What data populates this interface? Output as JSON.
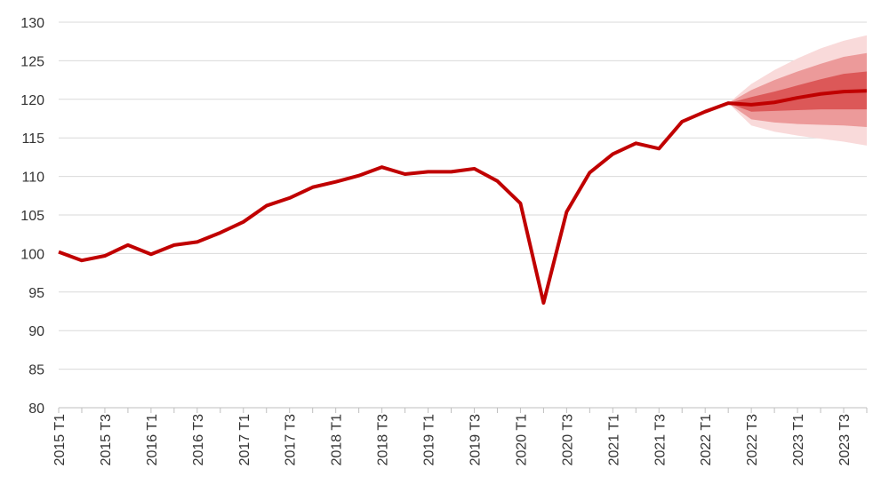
{
  "chart_data": {
    "type": "fan",
    "categories": [
      "2015 T1",
      null,
      "2015 T3",
      null,
      "2016 T1",
      null,
      "2016 T3",
      null,
      "2017 T1",
      null,
      "2017 T3",
      null,
      "2018 T1",
      null,
      "2018 T3",
      null,
      "2019 T1",
      null,
      "2019 T3",
      null,
      "2020 T1",
      null,
      "2020 T3",
      null,
      "2021 T1",
      null,
      "2021 T3",
      null,
      "2022 T1",
      null,
      "2022 T3",
      null,
      "2023 T1",
      null,
      "2023 T3",
      null
    ],
    "series": [
      {
        "color": "#c00000",
        "values": [
          100.2,
          99.1,
          99.7,
          101.1,
          99.9,
          101.1,
          101.5,
          102.7,
          104.1,
          106.2,
          107.2,
          108.6,
          109.3,
          110.1,
          111.2,
          110.3,
          110.6,
          110.6,
          111.0,
          109.4,
          106.5,
          93.6,
          105.4,
          110.5,
          112.9,
          114.3,
          113.6,
          117.1,
          118.4,
          119.5,
          119.3,
          119.6,
          120.2,
          120.7,
          121.0,
          121.1
        ]
      }
    ],
    "bands": [
      {
        "color": "#f9dada",
        "lower": [
          null,
          null,
          null,
          null,
          null,
          null,
          null,
          null,
          null,
          null,
          null,
          null,
          null,
          null,
          null,
          null,
          null,
          null,
          null,
          null,
          null,
          null,
          null,
          null,
          null,
          null,
          null,
          null,
          null,
          119.5,
          116.6,
          115.8,
          115.3,
          114.9,
          114.5,
          114.0
        ],
        "upper": [
          null,
          null,
          null,
          null,
          null,
          null,
          null,
          null,
          null,
          null,
          null,
          null,
          null,
          null,
          null,
          null,
          null,
          null,
          null,
          null,
          null,
          null,
          null,
          null,
          null,
          null,
          null,
          null,
          null,
          119.5,
          122.0,
          123.8,
          125.3,
          126.6,
          127.6,
          128.3
        ]
      },
      {
        "color": "#ec9a9a",
        "lower": [
          null,
          null,
          null,
          null,
          null,
          null,
          null,
          null,
          null,
          null,
          null,
          null,
          null,
          null,
          null,
          null,
          null,
          null,
          null,
          null,
          null,
          null,
          null,
          null,
          null,
          null,
          null,
          null,
          null,
          119.5,
          117.4,
          117.0,
          116.8,
          116.7,
          116.6,
          116.4
        ],
        "upper": [
          null,
          null,
          null,
          null,
          null,
          null,
          null,
          null,
          null,
          null,
          null,
          null,
          null,
          null,
          null,
          null,
          null,
          null,
          null,
          null,
          null,
          null,
          null,
          null,
          null,
          null,
          null,
          null,
          null,
          119.5,
          121.2,
          122.5,
          123.6,
          124.6,
          125.5,
          126.0
        ]
      },
      {
        "color": "#dc5858",
        "lower": [
          null,
          null,
          null,
          null,
          null,
          null,
          null,
          null,
          null,
          null,
          null,
          null,
          null,
          null,
          null,
          null,
          null,
          null,
          null,
          null,
          null,
          null,
          null,
          null,
          null,
          null,
          null,
          null,
          null,
          119.5,
          118.4,
          118.5,
          118.6,
          118.7,
          118.7,
          118.7
        ],
        "upper": [
          null,
          null,
          null,
          null,
          null,
          null,
          null,
          null,
          null,
          null,
          null,
          null,
          null,
          null,
          null,
          null,
          null,
          null,
          null,
          null,
          null,
          null,
          null,
          null,
          null,
          null,
          null,
          null,
          null,
          119.5,
          120.3,
          121.0,
          121.8,
          122.6,
          123.3,
          123.6
        ]
      }
    ],
    "ylim": [
      80,
      130
    ],
    "yticks": [
      80,
      85,
      90,
      95,
      100,
      105,
      110,
      115,
      120,
      125,
      130
    ],
    "grid": true
  }
}
